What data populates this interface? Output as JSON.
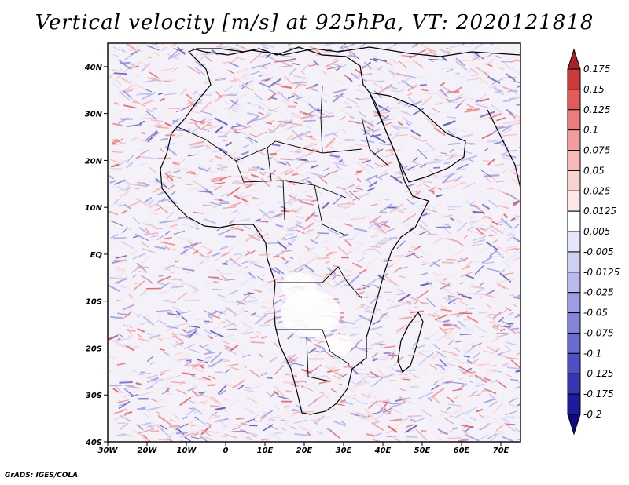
{
  "title": "Vertical velocity [m/s] at 925hPa, VT: 2020121818",
  "credit": "GrADS: IGES/COLA",
  "lat_labels": [
    "40N",
    "30N",
    "20N",
    "10N",
    "EQ",
    "10S",
    "20S",
    "30S",
    "40S"
  ],
  "lon_labels": [
    "30W",
    "20W",
    "10W",
    "0",
    "10E",
    "20E",
    "30E",
    "40E",
    "50E",
    "60E",
    "70E"
  ],
  "colorbar": {
    "levels": [
      "0.175",
      "0.15",
      "0.125",
      "0.1",
      "0.075",
      "0.05",
      "0.025",
      "0.0125",
      "0.005",
      "-0.005",
      "-0.0125",
      "-0.025",
      "-0.05",
      "-0.075",
      "-0.1",
      "-0.125",
      "-0.175",
      "-0.2"
    ],
    "colors": [
      "#a8202a",
      "#cf3a3a",
      "#e45a5a",
      "#ee7c7c",
      "#f39c9c",
      "#f7b8b8",
      "#fad2d2",
      "#fce6e6",
      "#ffffff",
      "#e6e6fa",
      "#d0d0f4",
      "#babaee",
      "#9e9ee6",
      "#8484dc",
      "#6a6ad0",
      "#5050c4",
      "#3636b4",
      "#1c1c9e",
      "#0c0c80"
    ]
  },
  "map": {
    "field_name": "vertical-velocity-field",
    "lon_range": [
      -30,
      75
    ],
    "lat_range": [
      -40,
      45
    ]
  }
}
